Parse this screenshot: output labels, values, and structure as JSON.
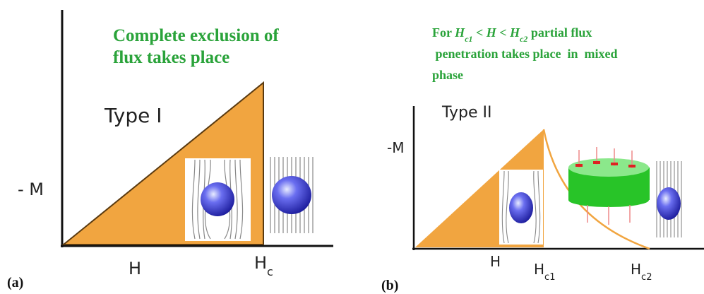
{
  "panel_a": {
    "label": "(a)",
    "note_lines": [
      "Complete exclusion of",
      "flux takes place"
    ],
    "type_label": "Type I",
    "y_axis_label": "- M",
    "x_labels": [
      {
        "main": "H"
      },
      {
        "main": "H",
        "sub": "c"
      }
    ]
  },
  "panel_b": {
    "label": "(b)",
    "note_lines": [
      [
        {
          "text": "For "
        },
        {
          "text": "H",
          "italic": true
        },
        {
          "text": "c1",
          "sub": true,
          "italic": true
        },
        {
          "text": " < "
        },
        {
          "text": "H",
          "italic": true
        },
        {
          "text": " < "
        },
        {
          "text": "H",
          "italic": true
        },
        {
          "text": "c2",
          "sub": true,
          "italic": true
        },
        {
          "text": " partial flux"
        }
      ],
      [
        {
          "text": " penetration takes place  in  mixed"
        }
      ],
      [
        {
          "text": "phase"
        }
      ]
    ],
    "type_label": "Type II",
    "y_axis_label": "-M",
    "x_labels": [
      {
        "main": "H"
      },
      {
        "main": "H",
        "sub": "c1"
      },
      {
        "main": "H",
        "sub": "c2"
      }
    ]
  }
}
